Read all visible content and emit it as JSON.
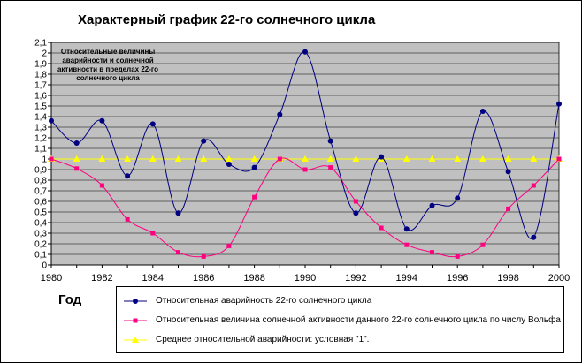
{
  "title": "Характерный график 22-го солнечного цикла",
  "annotation": "Относительные величины аварийности и солнечной активности в пределах 22-го солнечного цикла",
  "chart_data": {
    "type": "line",
    "xlabel": "Год",
    "ylabel": "",
    "x": [
      1980,
      1981,
      1982,
      1983,
      1984,
      1985,
      1986,
      1987,
      1988,
      1989,
      1990,
      1991,
      1992,
      1993,
      1994,
      1995,
      1996,
      1997,
      1998,
      1999,
      2000
    ],
    "xlim": [
      1980,
      2000
    ],
    "ylim": [
      0,
      2.1
    ],
    "x_ticks": [
      "1980",
      "1982",
      "1984",
      "1986",
      "1988",
      "1990",
      "1992",
      "1994",
      "1996",
      "1998",
      "2000"
    ],
    "y_ticks": [
      "0",
      "0,1",
      "0,2",
      "0,3",
      "0,4",
      "0,5",
      "0,6",
      "0,7",
      "0,8",
      "0,9",
      "1",
      "1,1",
      "1,2",
      "1,3",
      "1,4",
      "1,5",
      "1,6",
      "1,7",
      "1,8",
      "1,9",
      "2",
      "2,1"
    ],
    "grid": true,
    "plot_background": "#c0c0c0",
    "series": [
      {
        "name": "Относительная аварийность 22-го солнечного цикла",
        "color": "#000080",
        "marker": "circle",
        "values": [
          1.36,
          1.15,
          1.36,
          0.84,
          1.33,
          0.49,
          1.17,
          0.95,
          0.92,
          1.42,
          2.01,
          1.17,
          0.49,
          1.02,
          0.34,
          0.56,
          0.63,
          1.45,
          0.88,
          0.26,
          1.52
        ]
      },
      {
        "name": "Относительная величина солнечной активности данного 22-го солнечного цикла по числу Вольфа",
        "color": "#ff0080",
        "marker": "square",
        "values": [
          1.0,
          0.91,
          0.75,
          0.43,
          0.3,
          0.12,
          0.08,
          0.18,
          0.64,
          1.0,
          0.9,
          0.92,
          0.6,
          0.35,
          0.19,
          0.12,
          0.08,
          0.19,
          0.53,
          0.75,
          1.0
        ]
      },
      {
        "name": "Среднее относительной аварийности: условная \"1\".",
        "color": "#ffff00",
        "marker": "triangle",
        "values": [
          1,
          1,
          1,
          1,
          1,
          1,
          1,
          1,
          1,
          1,
          1,
          1,
          1,
          1,
          1,
          1,
          1,
          1,
          1,
          1,
          1
        ]
      }
    ]
  }
}
